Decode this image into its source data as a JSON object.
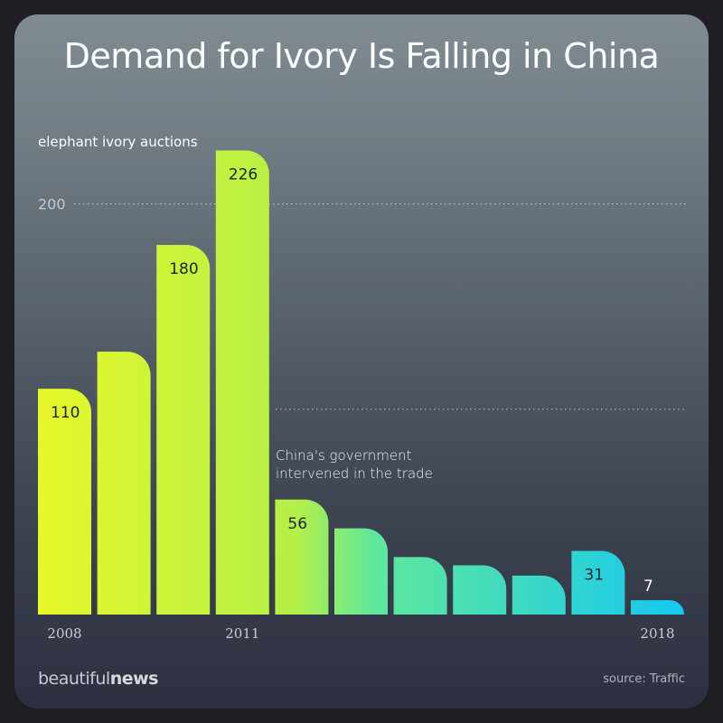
{
  "title": "Demand for Ivory Is Falling in China",
  "chart_data": {
    "type": "bar",
    "title": "Demand for Ivory Is Falling in China",
    "ylabel": "elephant ivory auctions",
    "categories": [
      "2008",
      "2009",
      "2010",
      "2011",
      "2012",
      "2013",
      "2014",
      "2015",
      "2016",
      "2017",
      "2018"
    ],
    "values": [
      110,
      128,
      180,
      226,
      56,
      42,
      28,
      24,
      19,
      31,
      7
    ],
    "value_labels": [
      "110",
      "",
      "180",
      "226",
      "56",
      "",
      "",
      "",
      "",
      "31",
      "7"
    ],
    "x_tick_labels": [
      "2008",
      "",
      "",
      "2011",
      "",
      "",
      "",
      "",
      "",
      "",
      "2018"
    ],
    "ylim": [
      0,
      250
    ],
    "gridlines": [
      100,
      200
    ],
    "y_tick_labels": [
      {
        "value": 200,
        "label": "200"
      }
    ],
    "annotation": "China's government intervened in the trade",
    "colors": {
      "start": "#e6f72a",
      "mid": "#58e7a0",
      "end": "#15c8f0"
    }
  },
  "annotation_lines": [
    "China's government",
    "intervened in the trade"
  ],
  "brand": {
    "light": "beautiful",
    "bold": "news"
  },
  "source": "source: Traffic"
}
